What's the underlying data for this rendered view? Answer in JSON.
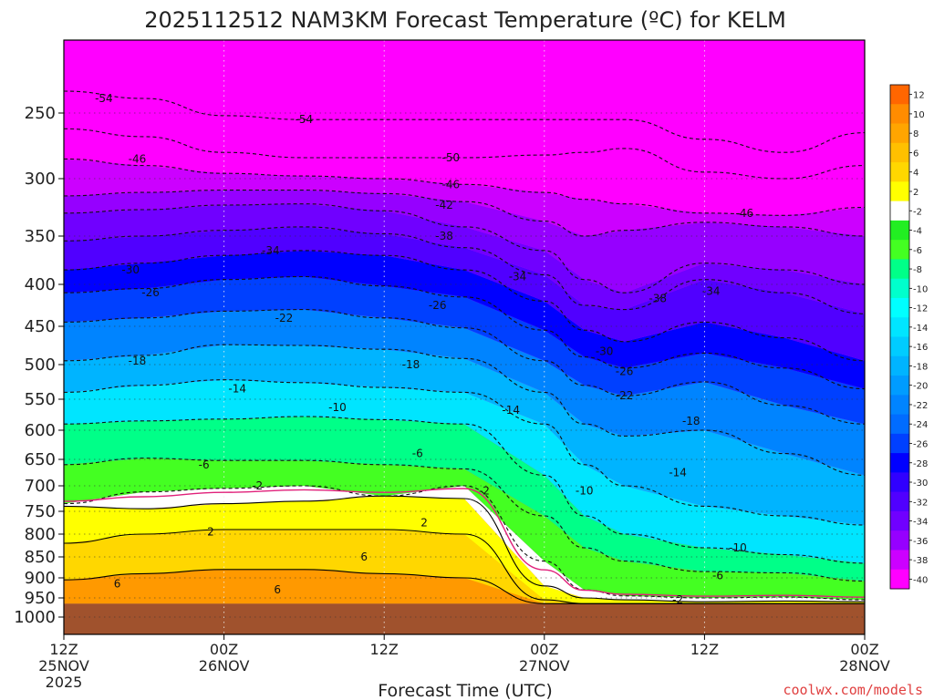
{
  "chart_data": {
    "type": "heatmap",
    "title": "2025112512 NAM3KM Forecast Temperature (ºC) for KELM",
    "xlabel": "Forecast Time (UTC)",
    "ylabel": "",
    "credit": "coolwx.com/models",
    "x_range_hours": [
      0,
      60
    ],
    "x_ticks": [
      {
        "hour": 0,
        "time": "12Z",
        "date": "25NOV",
        "year": "2025"
      },
      {
        "hour": 12,
        "time": "00Z",
        "date": "26NOV",
        "year": ""
      },
      {
        "hour": 24,
        "time": "12Z",
        "date": "",
        "year": ""
      },
      {
        "hour": 36,
        "time": "00Z",
        "date": "27NOV",
        "year": ""
      },
      {
        "hour": 48,
        "time": "12Z",
        "date": "",
        "year": ""
      },
      {
        "hour": 60,
        "time": "00Z",
        "date": "28NOV",
        "year": ""
      }
    ],
    "y_range_hpa": [
      1020,
      200
    ],
    "y_ticks_hpa": [
      250,
      300,
      350,
      400,
      450,
      500,
      550,
      600,
      650,
      700,
      750,
      800,
      850,
      900,
      950,
      1000
    ],
    "y_tick_labels": [
      "250",
      "300",
      "350",
      "400",
      "450",
      "500",
      "550",
      "600",
      "650",
      "700",
      "750",
      "800",
      "850",
      "900",
      "950",
      "1000"
    ],
    "surface_pressure_hpa": 965,
    "profile_times_hours": [
      0,
      6,
      12,
      18,
      24,
      30,
      36,
      39,
      42,
      48,
      54,
      60
    ],
    "isotherm_pressures_hpa": [
      {
        "temp": 2,
        "p": [
          740,
          745,
          735,
          730,
          720,
          725,
          920,
          950,
          955,
          960,
          958,
          960
        ]
      },
      {
        "temp": -2,
        "p": [
          735,
          712,
          705,
          700,
          720,
          700,
          860,
          930,
          945,
          950,
          948,
          955
        ]
      },
      {
        "temp": -6,
        "p": [
          660,
          648,
          652,
          652,
          660,
          668,
          760,
          830,
          860,
          885,
          888,
          908
        ]
      },
      {
        "temp": -10,
        "p": [
          590,
          585,
          582,
          578,
          583,
          590,
          680,
          760,
          800,
          830,
          845,
          865
        ]
      },
      {
        "temp": -14,
        "p": [
          540,
          530,
          522,
          526,
          533,
          540,
          590,
          660,
          700,
          740,
          760,
          780
        ]
      },
      {
        "temp": -18,
        "p": [
          495,
          488,
          474,
          475,
          480,
          492,
          540,
          590,
          610,
          600,
          640,
          680
        ]
      },
      {
        "temp": -22,
        "p": [
          445,
          440,
          432,
          430,
          440,
          452,
          495,
          530,
          545,
          525,
          560,
          590
        ]
      },
      {
        "temp": -26,
        "p": [
          410,
          405,
          395,
          392,
          402,
          415,
          455,
          490,
          505,
          485,
          505,
          535
        ]
      },
      {
        "temp": -30,
        "p": [
          385,
          378,
          370,
          365,
          370,
          385,
          420,
          455,
          470,
          445,
          465,
          495
        ]
      },
      {
        "temp": -34,
        "p": [
          355,
          350,
          345,
          342,
          348,
          362,
          390,
          425,
          430,
          395,
          410,
          435
        ]
      },
      {
        "temp": -38,
        "p": [
          330,
          327,
          323,
          322,
          328,
          342,
          365,
          395,
          410,
          378,
          385,
          400
        ]
      },
      {
        "temp": -42,
        "p": [
          315,
          312,
          310,
          310,
          313,
          320,
          337,
          350,
          345,
          338,
          342,
          350
        ]
      },
      {
        "temp": -46,
        "p": [
          285,
          290,
          296,
          298,
          300,
          305,
          312,
          318,
          322,
          330,
          332,
          325
        ]
      },
      {
        "temp": -50,
        "p": [
          262,
          268,
          280,
          284,
          284,
          284,
          282,
          280,
          277,
          295,
          300,
          290
        ]
      },
      {
        "temp": -54,
        "p": [
          235,
          240,
          252,
          255,
          255,
          255,
          255,
          255,
          255,
          270,
          280,
          265
        ]
      }
    ],
    "warm_isotherms_hpa": [
      {
        "temp": 6,
        "p": [
          820,
          800,
          790,
          790,
          790,
          800,
          955,
          965,
          965,
          965,
          965,
          965
        ]
      },
      {
        "temp": 10,
        "p": [
          905,
          890,
          880,
          880,
          890,
          900,
          965,
          965,
          965,
          965,
          965,
          965
        ]
      }
    ],
    "contour_labels": [
      {
        "value": "-54",
        "hour": 3,
        "p": 240
      },
      {
        "value": "-54",
        "hour": 18,
        "p": 255
      },
      {
        "value": "-46",
        "hour": 5.5,
        "p": 285
      },
      {
        "value": "-50",
        "hour": 29,
        "p": 284
      },
      {
        "value": "-46",
        "hour": 29,
        "p": 305
      },
      {
        "value": "-42",
        "hour": 28.5,
        "p": 323
      },
      {
        "value": "-46",
        "hour": 51,
        "p": 330
      },
      {
        "value": "-38",
        "hour": 28.5,
        "p": 350
      },
      {
        "value": "-34",
        "hour": 15.5,
        "p": 365
      },
      {
        "value": "-30",
        "hour": 5,
        "p": 385
      },
      {
        "value": "-34",
        "hour": 34,
        "p": 392
      },
      {
        "value": "-26",
        "hour": 6.5,
        "p": 410
      },
      {
        "value": "-34",
        "hour": 48.5,
        "p": 408
      },
      {
        "value": "-38",
        "hour": 44.5,
        "p": 417
      },
      {
        "value": "-26",
        "hour": 28,
        "p": 425
      },
      {
        "value": "-22",
        "hour": 16.5,
        "p": 440
      },
      {
        "value": "-30",
        "hour": 40.5,
        "p": 483
      },
      {
        "value": "-18",
        "hour": 5.5,
        "p": 495
      },
      {
        "value": "-18",
        "hour": 26,
        "p": 500
      },
      {
        "value": "-26",
        "hour": 42,
        "p": 510
      },
      {
        "value": "-14",
        "hour": 13,
        "p": 535
      },
      {
        "value": "-22",
        "hour": 42,
        "p": 545
      },
      {
        "value": "-10",
        "hour": 20.5,
        "p": 563
      },
      {
        "value": "-14",
        "hour": 33.5,
        "p": 568
      },
      {
        "value": "-18",
        "hour": 47,
        "p": 585
      },
      {
        "value": "-6",
        "hour": 10.5,
        "p": 660
      },
      {
        "value": "-6",
        "hour": 26.5,
        "p": 640
      },
      {
        "value": "-14",
        "hour": 46,
        "p": 675
      },
      {
        "value": "-2",
        "hour": 14.5,
        "p": 700
      },
      {
        "value": "-2",
        "hour": 31.5,
        "p": 710
      },
      {
        "value": "-10",
        "hour": 39,
        "p": 710
      },
      {
        "value": "2",
        "hour": 11,
        "p": 795
      },
      {
        "value": "2",
        "hour": 27,
        "p": 775
      },
      {
        "value": "6",
        "hour": 22.5,
        "p": 850
      },
      {
        "value": "-10",
        "hour": 50.5,
        "p": 830
      },
      {
        "value": "6",
        "hour": 4,
        "p": 915
      },
      {
        "value": "6",
        "hour": 16,
        "p": 930
      },
      {
        "value": "-6",
        "hour": 49,
        "p": 895
      },
      {
        "value": "-2",
        "hour": 46,
        "p": 955
      }
    ],
    "colorbar": {
      "labels": [
        "12",
        "10",
        "8",
        "6",
        "4",
        "2",
        "-2",
        "-4",
        "-6",
        "-8",
        "-10",
        "-12",
        "-14",
        "-16",
        "-18",
        "-20",
        "-22",
        "-24",
        "-26",
        "-28",
        "-30",
        "-32",
        "-34",
        "-36",
        "-38",
        "-40"
      ],
      "colors": [
        "#ff6600",
        "#ff8c00",
        "#ffa500",
        "#ffc000",
        "#ffd700",
        "#ffff00",
        "#ffffff",
        "#22ee22",
        "#44ff22",
        "#00ff88",
        "#00ffcc",
        "#00ffff",
        "#00e5ff",
        "#00ccff",
        "#00b4ff",
        "#009cff",
        "#0084ff",
        "#006cff",
        "#0040ff",
        "#0000ff",
        "#3000ff",
        "#5000ff",
        "#7000ff",
        "#9600ff",
        "#cc00ff",
        "#ff00ff"
      ]
    },
    "ground_color": "#a0522d",
    "warm_tone_color": "#ff9900"
  }
}
